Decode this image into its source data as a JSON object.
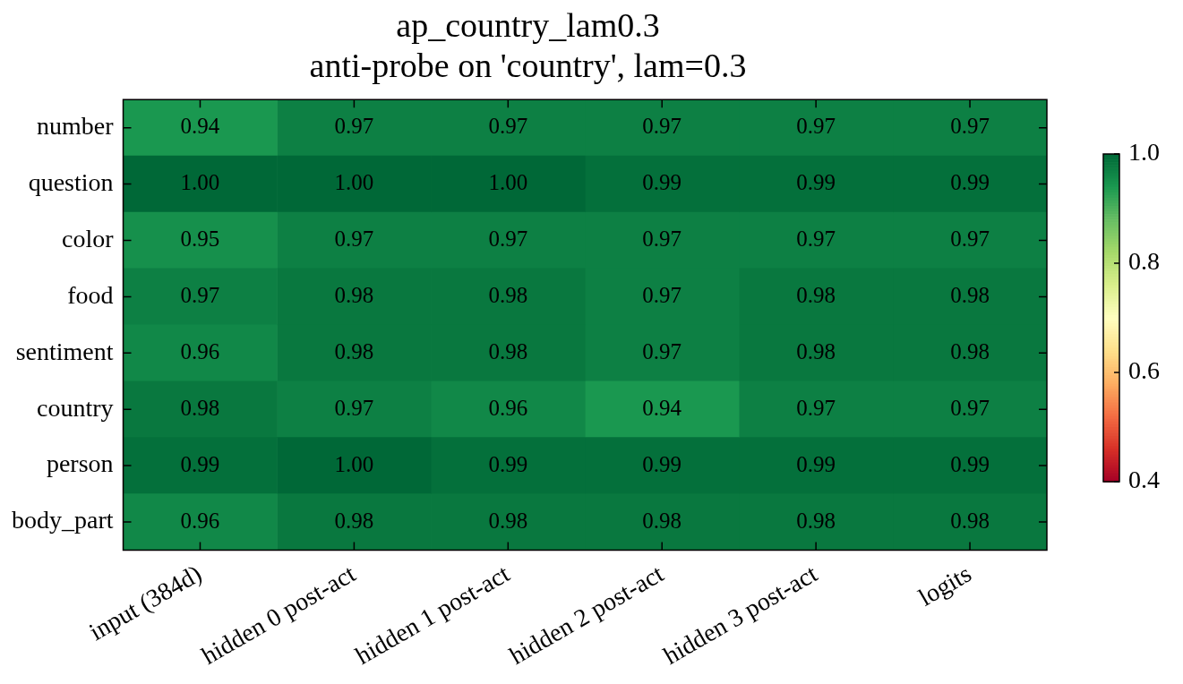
{
  "chart_data": {
    "type": "heatmap",
    "title": "ap_country_lam0.3",
    "subtitle": "anti-probe on 'country', lam=0.3",
    "categories": [
      "input (384d)",
      "hidden 0 post-act",
      "hidden 1 post-act",
      "hidden 2 post-act",
      "hidden 3 post-act",
      "logits"
    ],
    "y_categories": [
      "number",
      "question",
      "color",
      "food",
      "sentiment",
      "country",
      "person",
      "body_part"
    ],
    "cells": [
      [
        0.94,
        0.97,
        0.97,
        0.97,
        0.97,
        0.97
      ],
      [
        1.0,
        1.0,
        1.0,
        0.99,
        0.99,
        0.99
      ],
      [
        0.95,
        0.97,
        0.97,
        0.97,
        0.97,
        0.97
      ],
      [
        0.97,
        0.98,
        0.98,
        0.97,
        0.98,
        0.98
      ],
      [
        0.96,
        0.98,
        0.98,
        0.97,
        0.98,
        0.98
      ],
      [
        0.98,
        0.97,
        0.96,
        0.94,
        0.97,
        0.97
      ],
      [
        0.99,
        1.0,
        0.99,
        0.99,
        0.99,
        0.99
      ],
      [
        0.96,
        0.98,
        0.98,
        0.98,
        0.98,
        0.98
      ]
    ],
    "cell_labels": [
      [
        "0.94",
        "0.97",
        "0.97",
        "0.97",
        "0.97",
        "0.97"
      ],
      [
        "1.00",
        "1.00",
        "1.00",
        "0.99",
        "0.99",
        "0.99"
      ],
      [
        "0.95",
        "0.97",
        "0.97",
        "0.97",
        "0.97",
        "0.97"
      ],
      [
        "0.97",
        "0.98",
        "0.98",
        "0.97",
        "0.98",
        "0.98"
      ],
      [
        "0.96",
        "0.98",
        "0.98",
        "0.97",
        "0.98",
        "0.98"
      ],
      [
        "0.98",
        "0.97",
        "0.96",
        "0.94",
        "0.97",
        "0.97"
      ],
      [
        "0.99",
        "1.00",
        "0.99",
        "0.99",
        "0.99",
        "0.99"
      ],
      [
        "0.96",
        "0.98",
        "0.98",
        "0.98",
        "0.98",
        "0.98"
      ]
    ],
    "clim": [
      0.4,
      1.0
    ],
    "cticks": [
      0.4,
      0.6,
      0.8,
      {
        "value": 1,
        "label": "1.0"
      }
    ]
  }
}
